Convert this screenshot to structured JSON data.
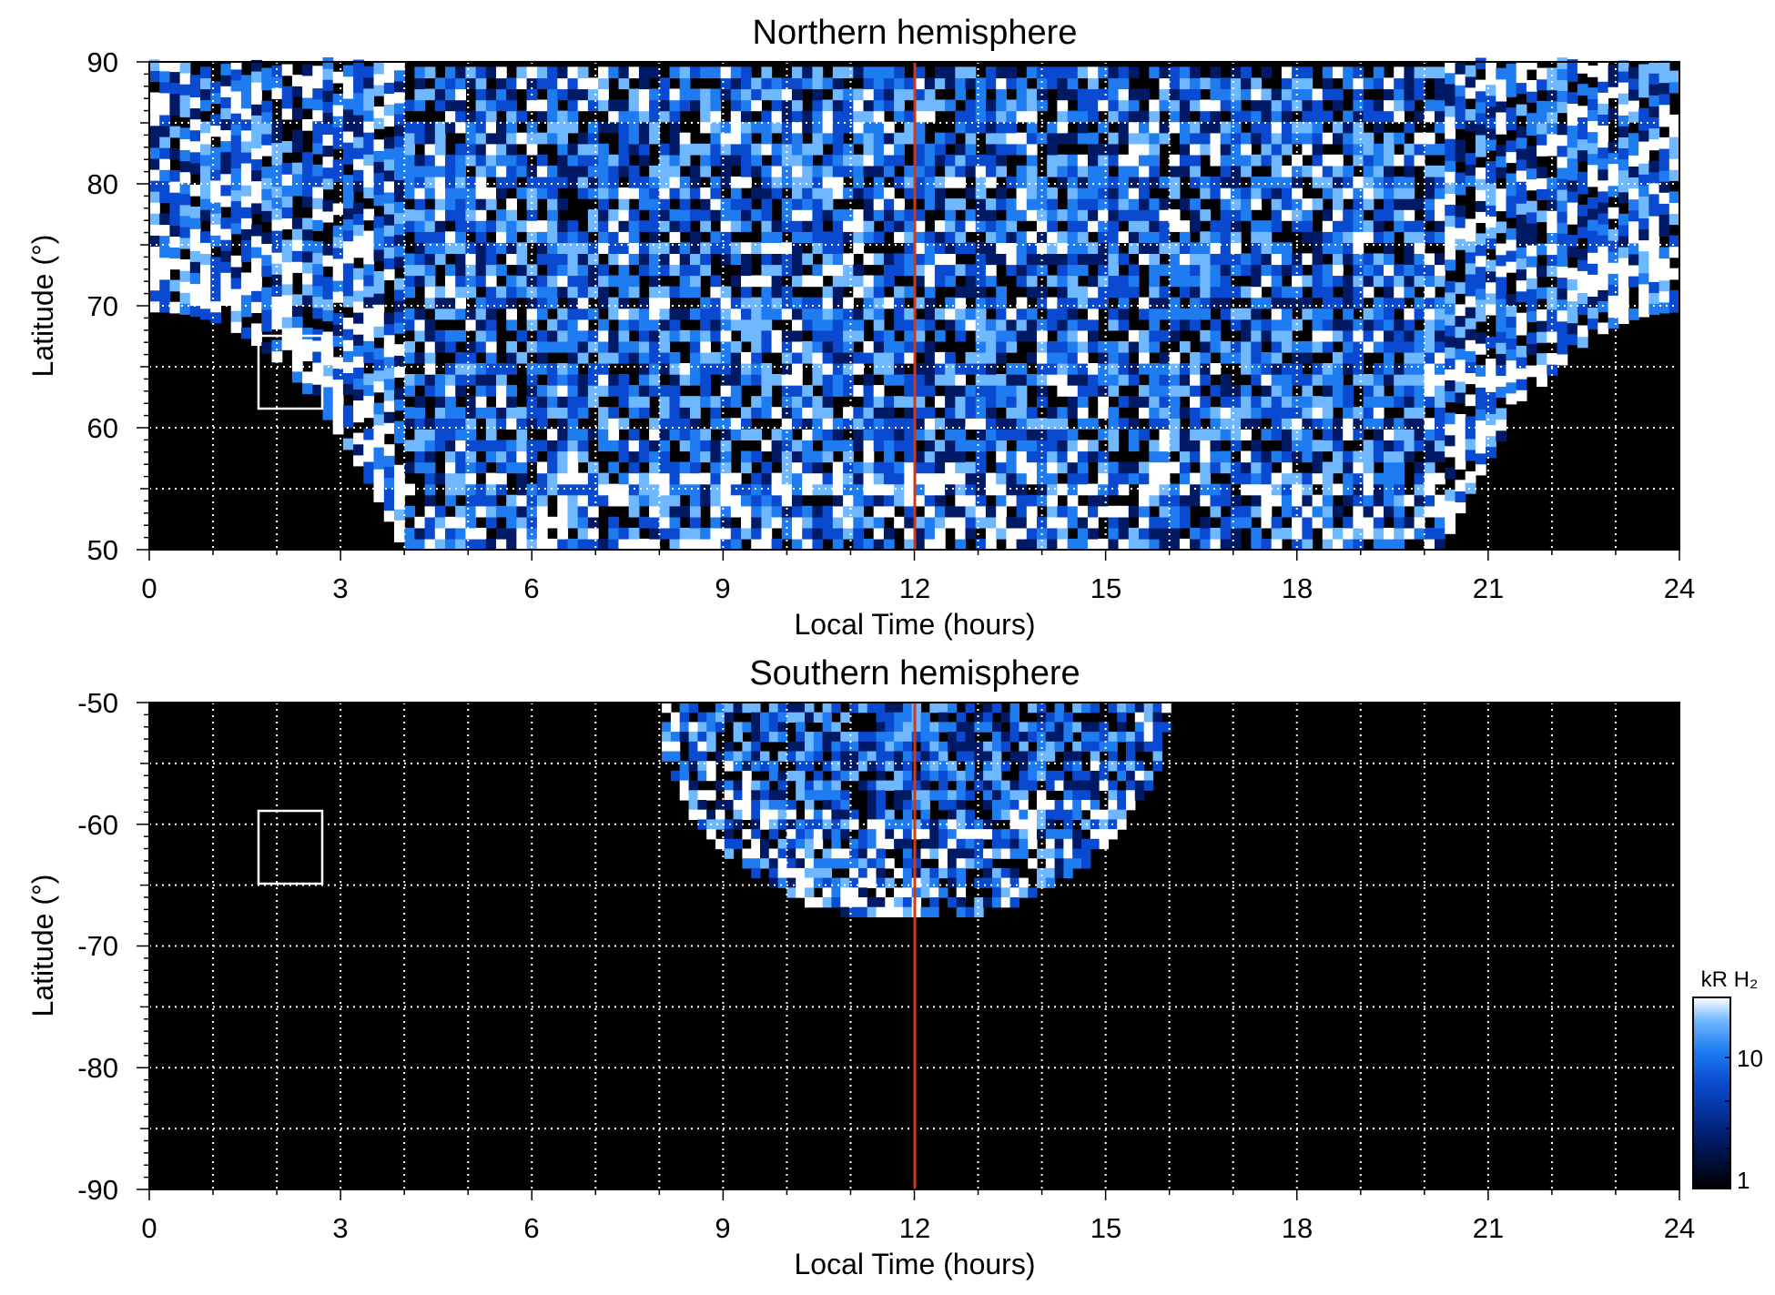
{
  "chart_data": [
    {
      "type": "heatmap",
      "title": "Northern hemisphere",
      "xlabel": "Local Time (hours)",
      "ylabel": "Latitude (°)",
      "xlim": [
        0,
        24
      ],
      "ylim": [
        50,
        90
      ],
      "xticks": [
        "0",
        "3",
        "6",
        "9",
        "12",
        "15",
        "18",
        "21",
        "24"
      ],
      "yticks": [
        "50",
        "60",
        "70",
        "80",
        "90"
      ],
      "grid": true,
      "marker_line_local_time": 12,
      "marker_line_color": "#cc3a1b",
      "box_region": {
        "local_time": [
          1.7,
          2.7
        ],
        "latitude": [
          61.5,
          67.5
        ]
      },
      "emission_region": {
        "description_shape": "dome",
        "polar_edge_latitude": 69.5,
        "dayside_equatorward_edge": [
          [
            3.9,
            50
          ],
          [
            12,
            50
          ],
          [
            19.2,
            50
          ]
        ],
        "flank_edges": [
          [
            0,
            69.5
          ],
          [
            1.5,
            68.5
          ],
          [
            2.7,
            65.5
          ],
          [
            3.5,
            58
          ],
          [
            3.9,
            50
          ],
          [
            20.2,
            50
          ],
          [
            20.9,
            58
          ],
          [
            22,
            66
          ],
          [
            23,
            69
          ],
          [
            24,
            69.5
          ]
        ]
      }
    },
    {
      "type": "heatmap",
      "title": "Southern hemisphere",
      "xlabel": "Local Time (hours)",
      "ylabel": "Latitude (°)",
      "xlim": [
        0,
        24
      ],
      "ylim": [
        -90,
        -50
      ],
      "xticks": [
        "0",
        "3",
        "6",
        "9",
        "12",
        "15",
        "18",
        "21",
        "24"
      ],
      "yticks": [
        "-90",
        "-80",
        "-70",
        "-60",
        "-50"
      ],
      "grid": true,
      "marker_line_local_time": 12,
      "marker_line_color": "#cc3a1b",
      "box_region": {
        "local_time": [
          1.7,
          2.7
        ],
        "latitude": [
          -65,
          -59
        ]
      },
      "emission_region": {
        "local_time_range": [
          7.9,
          15.9
        ],
        "latitude_bottom": -67.5
      }
    }
  ],
  "colorbar": {
    "label": "kR H₂",
    "scale": "log",
    "range": [
      1,
      30
    ],
    "tick_labels": [
      "1",
      "10"
    ],
    "colors": [
      "#000000",
      "#001a66",
      "#0a4ad0",
      "#1e7cf0",
      "#6fb8ff",
      "#ffffff"
    ]
  }
}
